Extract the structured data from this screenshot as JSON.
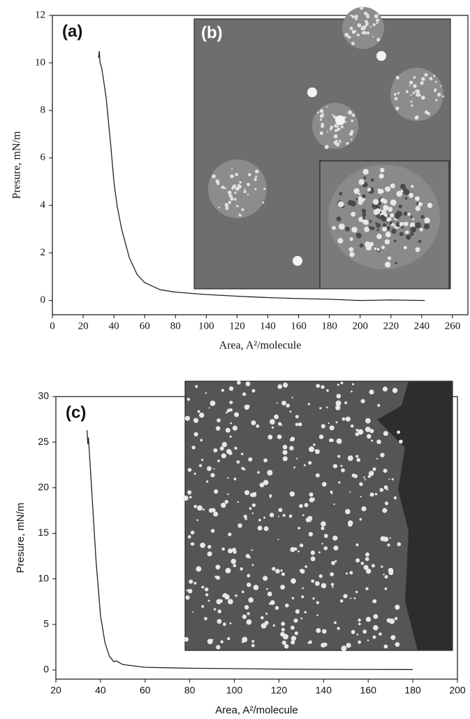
{
  "chart_data": [
    {
      "type": "line",
      "panel_label": "(a)",
      "inset_label": "(b)",
      "x_label": "Area, A²/molecule",
      "y_label": "Presure, mN/m",
      "x": [
        30,
        30.5,
        31,
        32,
        33,
        35,
        38,
        40,
        42,
        45,
        50,
        55,
        60,
        70,
        80,
        100,
        120,
        140,
        160,
        180,
        200,
        220,
        242
      ],
      "values": [
        10.2,
        10.5,
        10.0,
        9.8,
        9.4,
        8.5,
        6.5,
        5.0,
        4.0,
        3.0,
        1.8,
        1.1,
        0.75,
        0.45,
        0.35,
        0.25,
        0.18,
        0.12,
        0.08,
        0.05,
        0.0,
        0.02,
        0.0
      ],
      "color": "#222222",
      "xlim": [
        0,
        270
      ],
      "ylim": [
        -0.6,
        12
      ],
      "xticks": [
        0,
        20,
        40,
        60,
        80,
        100,
        120,
        140,
        160,
        180,
        200,
        220,
        240,
        260
      ],
      "yticks": [
        0,
        2,
        4,
        6,
        8,
        10,
        12
      ]
    },
    {
      "type": "line",
      "panel_label": "(c)",
      "x_label": "Area, A²/molecule",
      "y_label": "Presure, mN/m",
      "x": [
        34,
        34.3,
        34.6,
        35,
        36,
        38,
        40,
        42,
        44,
        46,
        47,
        50,
        60,
        80,
        100,
        120,
        150,
        180
      ],
      "values": [
        26.3,
        24.8,
        25.5,
        24.0,
        20.0,
        12.0,
        6.0,
        3.0,
        1.5,
        0.9,
        1.0,
        0.6,
        0.3,
        0.2,
        0.15,
        0.1,
        0.07,
        0.05
      ],
      "color": "#222222",
      "xlim": [
        20,
        200
      ],
      "ylim": [
        -1,
        30
      ],
      "xticks": [
        20,
        40,
        60,
        80,
        100,
        120,
        140,
        160,
        180,
        200
      ],
      "yticks": [
        0,
        5,
        10,
        15,
        20,
        25,
        30
      ]
    }
  ]
}
